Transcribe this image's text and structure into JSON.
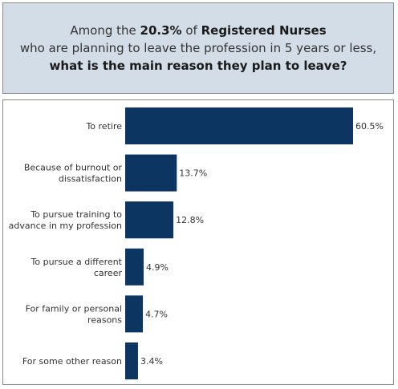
{
  "header": {
    "line1_pre": "Among the ",
    "line1_pct": "20.3%",
    "line1_mid": " of ",
    "line1_group": "Registered Nurses",
    "line2": "who are planning to leave the profession in 5 years or less,",
    "line3": "what is the main reason they plan to leave?"
  },
  "colors": {
    "bar": "#0d3562",
    "header_bg": "#d3dde8"
  },
  "chart_data": {
    "type": "bar",
    "orientation": "horizontal",
    "categories": [
      [
        "To retire"
      ],
      [
        "Because of burnout or",
        "dissatisfaction"
      ],
      [
        "To pursue training to",
        "advance in my profession"
      ],
      [
        "To pursue a different",
        "career"
      ],
      [
        "For family or personal",
        "reasons"
      ],
      [
        "For some other reason"
      ]
    ],
    "values": [
      60.5,
      13.7,
      12.8,
      4.9,
      4.7,
      3.4
    ],
    "value_labels": [
      "60.5%",
      "13.7%",
      "12.8%",
      "4.9%",
      "4.7%",
      "3.4%"
    ],
    "title": "",
    "xlabel": "",
    "ylabel": "",
    "xlim": [
      0,
      60.5
    ],
    "grid": false
  }
}
